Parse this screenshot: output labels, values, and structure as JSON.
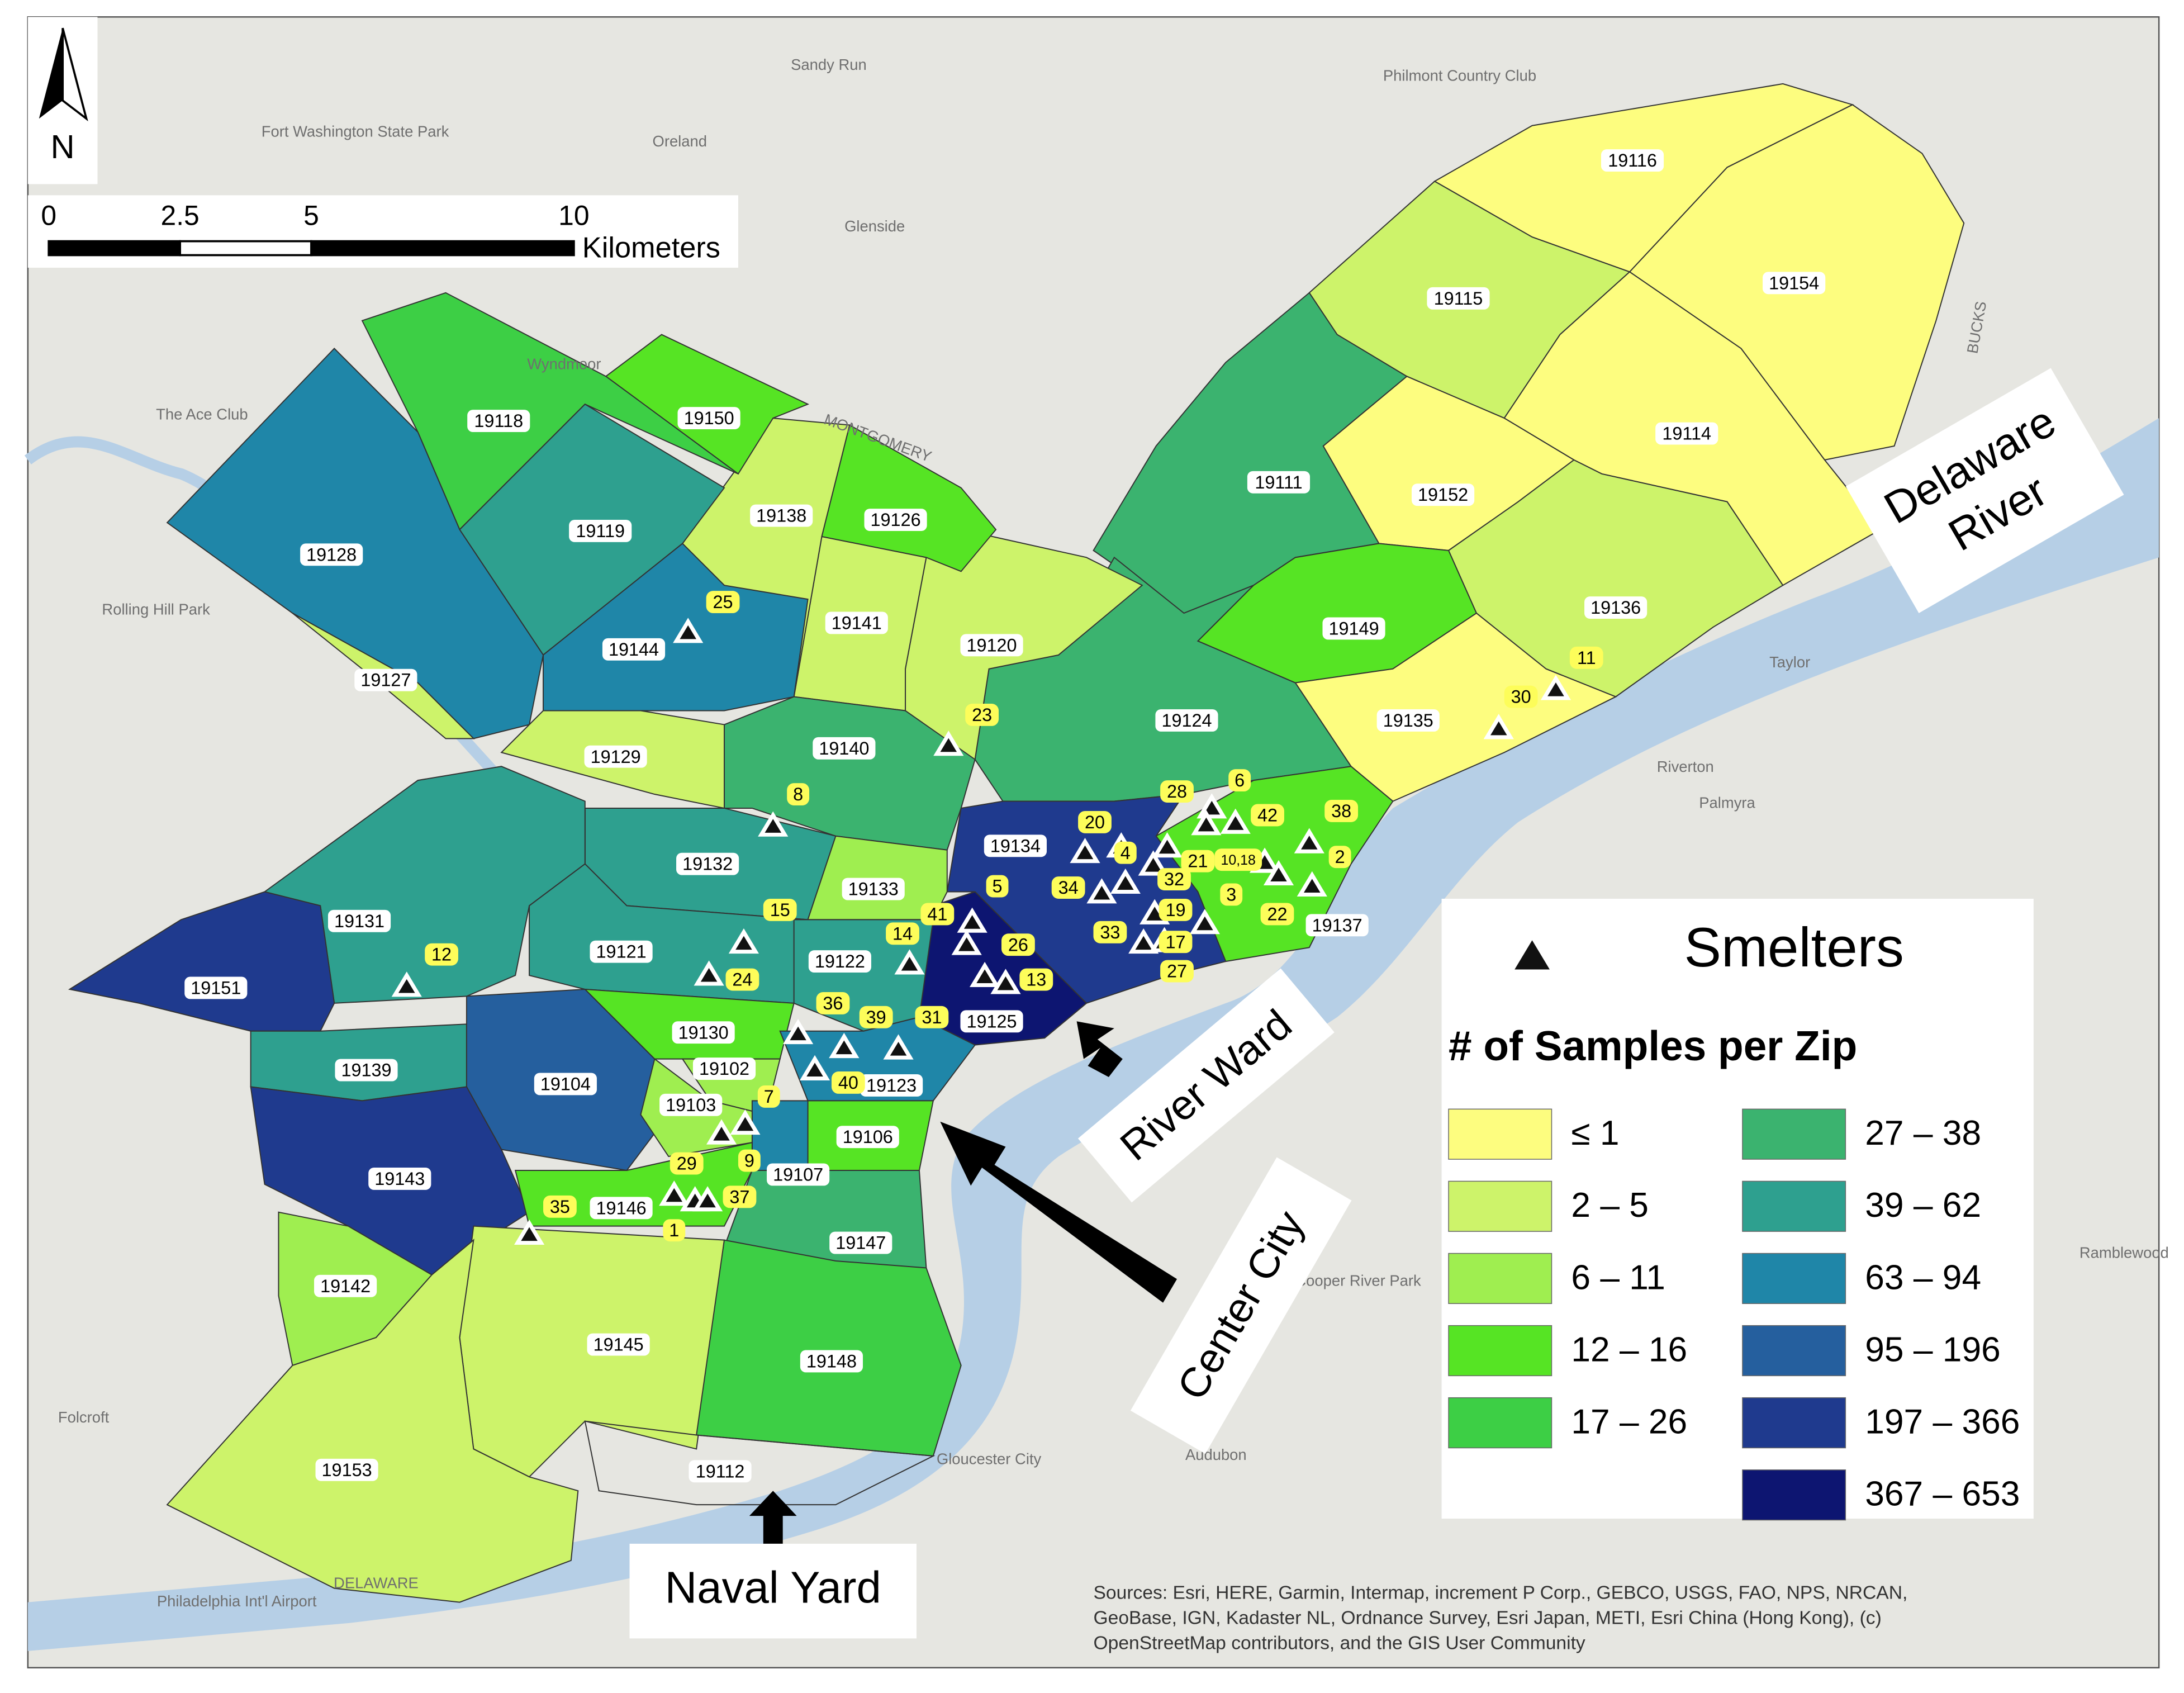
{
  "map": {
    "zips": [
      {
        "label": "19116",
        "class": 0
      },
      {
        "label": "19154",
        "class": 0
      },
      {
        "label": "19115",
        "class": 1
      },
      {
        "label": "19114",
        "class": 0
      },
      {
        "label": "19152",
        "class": 0
      },
      {
        "label": "19136",
        "class": 1
      },
      {
        "label": "19111",
        "class": 5
      },
      {
        "label": "19149",
        "class": 3
      },
      {
        "label": "19135",
        "class": 0
      },
      {
        "label": "19124",
        "class": 5
      },
      {
        "label": "19137",
        "class": 3
      },
      {
        "label": "19134",
        "class": 9
      },
      {
        "label": "19125",
        "class": 10
      },
      {
        "label": "19120",
        "class": 1
      },
      {
        "label": "19141",
        "class": 1
      },
      {
        "label": "19138",
        "class": 1
      },
      {
        "label": "19126",
        "class": 3
      },
      {
        "label": "19150",
        "class": 3
      },
      {
        "label": "19118",
        "class": 4
      },
      {
        "label": "19119",
        "class": 6
      },
      {
        "label": "19128",
        "class": 7
      },
      {
        "label": "19127",
        "class": 1
      },
      {
        "label": "19144",
        "class": 7
      },
      {
        "label": "19129",
        "class": 1
      },
      {
        "label": "19140",
        "class": 5
      },
      {
        "label": "19132",
        "class": 6
      },
      {
        "label": "19133",
        "class": 2
      },
      {
        "label": "19131",
        "class": 6
      },
      {
        "label": "19151",
        "class": 9
      },
      {
        "label": "19121",
        "class": 6
      },
      {
        "label": "19122",
        "class": 6
      },
      {
        "label": "19139",
        "class": 6
      },
      {
        "label": "19104",
        "class": 8
      },
      {
        "label": "19130",
        "class": 3
      },
      {
        "label": "19123",
        "class": 7
      },
      {
        "label": "19102",
        "class": 2
      },
      {
        "label": "19103",
        "class": 2
      },
      {
        "label": "19107",
        "class": 7
      },
      {
        "label": "19106",
        "class": 3
      },
      {
        "label": "19143",
        "class": 9
      },
      {
        "label": "19146",
        "class": 3
      },
      {
        "label": "19147",
        "class": 5
      },
      {
        "label": "19142",
        "class": 2
      },
      {
        "label": "19145",
        "class": 1
      },
      {
        "label": "19148",
        "class": 4
      },
      {
        "label": "19153",
        "class": 1
      },
      {
        "label": "19112"
      }
    ],
    "smelter_labels": [
      "25",
      "11",
      "30",
      "23",
      "8",
      "6",
      "28",
      "42",
      "38",
      "20",
      "4",
      "21",
      "10,18",
      "2",
      "32",
      "5",
      "34",
      "3",
      "19",
      "22",
      "15",
      "41",
      "14",
      "33",
      "17",
      "26",
      "27",
      "12",
      "24",
      "13",
      "36",
      "39",
      "31",
      "40",
      "7",
      "9",
      "29",
      "37",
      "35",
      "1"
    ],
    "legend": {
      "smelters_title": "Smelters",
      "title": "# of Samples per Zip",
      "classes": [
        {
          "label": "≤ 1",
          "color": "#fdfd7f"
        },
        {
          "label": "2 – 5",
          "color": "#cdf36a"
        },
        {
          "label": "6 – 11",
          "color": "#9fee50"
        },
        {
          "label": "12 – 16",
          "color": "#56e424"
        },
        {
          "label": "17 – 26",
          "color": "#3dcf45"
        },
        {
          "label": "27 – 38",
          "color": "#3bb36f"
        },
        {
          "label": "39 – 62",
          "color": "#2ea08f"
        },
        {
          "label": "63 – 94",
          "color": "#1f86a8"
        },
        {
          "label": "95 – 196",
          "color": "#255f9e"
        },
        {
          "label": "197 – 366",
          "color": "#1f3a8e"
        },
        {
          "label": "367 – 653",
          "color": "#0d1571"
        }
      ]
    },
    "north": "N",
    "scale_bar": {
      "ticks": [
        0,
        2.5,
        5,
        10
      ],
      "unit": "Kilometers"
    },
    "annotations": {
      "delaware_river": [
        "Delaware",
        "River"
      ],
      "river_ward": "River Ward",
      "center_city": "Center City",
      "naval_yard": "Naval Yard"
    },
    "basemap_labels": [
      "Sandy Run",
      "Philmont Country Club",
      "Fort Washington State Park",
      "Oreland",
      "Glenside",
      "Wyndmoor",
      "The Ace Club",
      "Rolling Hill Park",
      "MONTGOMERY",
      "BUCKS",
      "Taylor",
      "Riverton",
      "Palmyra",
      "Gloucester City",
      "Audubon",
      "Cooper River Park",
      "Ramblewood",
      "Folcroft",
      "Philadelphia Int'l Airport",
      "DELAWARE"
    ],
    "sources": [
      "Sources: Esri, HERE, Garmin, Intermap, increment P Corp., GEBCO, USGS, FAO, NPS, NRCAN,",
      "GeoBase, IGN, Kadaster NL, Ordnance Survey, Esri Japan, METI, Esri China (Hong Kong), (c)",
      "OpenStreetMap contributors, and the GIS User Community"
    ]
  }
}
